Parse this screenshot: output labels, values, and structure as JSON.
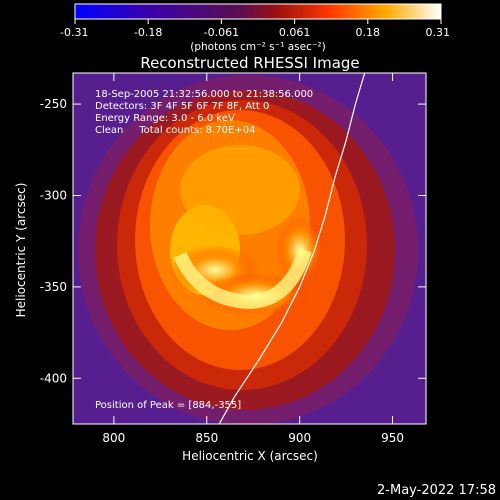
{
  "chart_data": {
    "type": "heatmap",
    "title": "Reconstructed RHESSI Image",
    "xlabel": "Heliocentric X (arcsec)",
    "ylabel": "Heliocentric Y (arcsec)",
    "xlim": [
      778,
      968
    ],
    "ylim": [
      -425,
      -233
    ],
    "x_ticks": [
      800,
      850,
      900,
      950
    ],
    "y_ticks": [
      -400,
      -350,
      -300,
      -250
    ],
    "colorbar": {
      "range": [
        -0.31,
        0.31
      ],
      "ticks": [
        "-0.31",
        "-0.18",
        "-0.061",
        "0.061",
        "0.18",
        "0.31"
      ],
      "unit": "(photons cm⁻² s⁻¹ asec⁻²)"
    },
    "annotations": [
      "18-Sep-2005 21:32:56.000 to 21:38:56.000",
      "Detectors: 3F 4F 5F 6F 7F 8F, Att 0",
      "Energy Range: 3.0 - 6.0 keV",
      "Clean     Total counts: 8.70E+04",
      "Position of Peak = [884,-355]"
    ],
    "peak": [
      884,
      -355
    ],
    "limb_curve": [
      [
        855,
        -428
      ],
      [
        865,
        -410
      ],
      [
        878,
        -390
      ],
      [
        890,
        -370
      ],
      [
        900,
        -350
      ],
      [
        908,
        -330
      ],
      [
        914,
        -310
      ],
      [
        919,
        -290
      ],
      [
        925,
        -270
      ],
      [
        930,
        -250
      ],
      [
        935,
        -233
      ]
    ]
  },
  "footer_date": "2-May-2022 17:58"
}
